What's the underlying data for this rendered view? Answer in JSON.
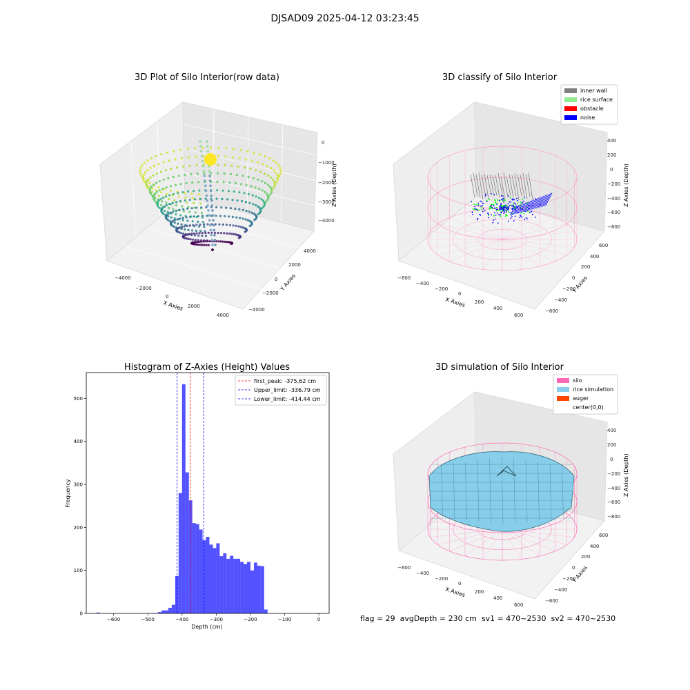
{
  "suptitle": "DJSAD09 2025-04-12 03:23:45",
  "panel1": {
    "title": "3D Plot of Silo Interior(row data)",
    "xlabel": "X Axies",
    "ylabel": "Y Axies",
    "zlabel": "Z Axies (Depth)",
    "xticks": [
      "−4000",
      "−2000",
      "0",
      "2000",
      "4000"
    ],
    "yticks": [
      "−4000",
      "−2000",
      "0",
      "2000",
      "4000"
    ],
    "zticks": [
      "0",
      "−1000",
      "−2000",
      "−3000",
      "−4000"
    ]
  },
  "panel2": {
    "title": "3D classify of Silo Interior",
    "xlabel": "X Axies",
    "ylabel": "Y Axies",
    "zlabel": "Z Axies (Depth)",
    "xticks": [
      "−600",
      "−400",
      "−200",
      "0",
      "200",
      "400",
      "600"
    ],
    "yticks": [
      "−600",
      "−400",
      "−200",
      "0",
      "200",
      "400",
      "600"
    ],
    "zticks": [
      "400",
      "200",
      "0",
      "−200",
      "−400",
      "−600",
      "−800"
    ],
    "legend": [
      {
        "label": "inner wall",
        "color": "#808080"
      },
      {
        "label": "rice surface",
        "color": "#90ee90"
      },
      {
        "label": "obstacle",
        "color": "#ff0000"
      },
      {
        "label": "noise",
        "color": "#0000ff"
      }
    ]
  },
  "panel3": {
    "title": "3D simulation of Silo Interior",
    "xlabel": "X Axies",
    "ylabel": "Y Axies",
    "zlabel": "Z Axies (Depth)",
    "xticks": [
      "−600",
      "−400",
      "−200",
      "0",
      "200",
      "400",
      "600"
    ],
    "yticks": [
      "−600",
      "−400",
      "−200",
      "0",
      "200",
      "400",
      "600"
    ],
    "zticks": [
      "400",
      "200",
      "0",
      "−200",
      "−400",
      "−600",
      "−800"
    ],
    "legend": [
      {
        "label": "silo",
        "color": "#ff69b4"
      },
      {
        "label": "rice simulation",
        "color": "#87ceeb"
      },
      {
        "label": "auger",
        "color": "#ff4500"
      },
      {
        "label": "center(0,0)",
        "color": "#ffffff"
      }
    ]
  },
  "status_line": "flag = 29  avgDepth = 230 cm  sv1 = 470~2530  sv2 = 470~2530",
  "chart_data": {
    "type": "bar",
    "title": "Histogram of Z-Axies (Height) Values",
    "xlabel": "Depth (cm)",
    "ylabel": "Frequency",
    "xlim": [
      -680,
      30
    ],
    "ylim": [
      0,
      560
    ],
    "xticks": [
      -600,
      -500,
      -400,
      -300,
      -200,
      -100,
      0
    ],
    "yticks": [
      0,
      100,
      200,
      300,
      400,
      500
    ],
    "bar_color": "#0000ff",
    "bins": [
      {
        "x0": -650,
        "x1": -640,
        "v": 2
      },
      {
        "x0": -490,
        "x1": -480,
        "v": 1
      },
      {
        "x0": -480,
        "x1": -470,
        "v": 1
      },
      {
        "x0": -470,
        "x1": -460,
        "v": 3
      },
      {
        "x0": -460,
        "x1": -450,
        "v": 7
      },
      {
        "x0": -450,
        "x1": -440,
        "v": 7
      },
      {
        "x0": -440,
        "x1": -430,
        "v": 13
      },
      {
        "x0": -430,
        "x1": -420,
        "v": 20
      },
      {
        "x0": -420,
        "x1": -410,
        "v": 87
      },
      {
        "x0": -410,
        "x1": -400,
        "v": 280
      },
      {
        "x0": -400,
        "x1": -390,
        "v": 533
      },
      {
        "x0": -390,
        "x1": -380,
        "v": 328
      },
      {
        "x0": -380,
        "x1": -370,
        "v": 263
      },
      {
        "x0": -370,
        "x1": -360,
        "v": 210
      },
      {
        "x0": -360,
        "x1": -350,
        "v": 208
      },
      {
        "x0": -350,
        "x1": -340,
        "v": 195
      },
      {
        "x0": -340,
        "x1": -330,
        "v": 170
      },
      {
        "x0": -330,
        "x1": -320,
        "v": 178
      },
      {
        "x0": -320,
        "x1": -310,
        "v": 160
      },
      {
        "x0": -310,
        "x1": -300,
        "v": 152
      },
      {
        "x0": -300,
        "x1": -290,
        "v": 163
      },
      {
        "x0": -290,
        "x1": -280,
        "v": 133
      },
      {
        "x0": -280,
        "x1": -270,
        "v": 140
      },
      {
        "x0": -270,
        "x1": -260,
        "v": 127
      },
      {
        "x0": -260,
        "x1": -250,
        "v": 134
      },
      {
        "x0": -250,
        "x1": -240,
        "v": 127
      },
      {
        "x0": -240,
        "x1": -230,
        "v": 127
      },
      {
        "x0": -230,
        "x1": -220,
        "v": 120
      },
      {
        "x0": -220,
        "x1": -210,
        "v": 115
      },
      {
        "x0": -210,
        "x1": -200,
        "v": 120
      },
      {
        "x0": -200,
        "x1": -190,
        "v": 100
      },
      {
        "x0": -190,
        "x1": -180,
        "v": 118
      },
      {
        "x0": -180,
        "x1": -170,
        "v": 111
      },
      {
        "x0": -170,
        "x1": -160,
        "v": 110
      },
      {
        "x0": -160,
        "x1": -150,
        "v": 9
      },
      {
        "x0": -10,
        "x1": 0,
        "v": 1
      }
    ],
    "vlines": [
      {
        "label": "first_peak: -375.62 cm",
        "x": -375.62,
        "color": "#ff0000"
      },
      {
        "label": "Upper_limit: -336.79 cm",
        "x": -336.79,
        "color": "#0000ff"
      },
      {
        "label": "Lower_limit: -414.44 cm",
        "x": -414.44,
        "color": "#0000ff"
      }
    ]
  }
}
